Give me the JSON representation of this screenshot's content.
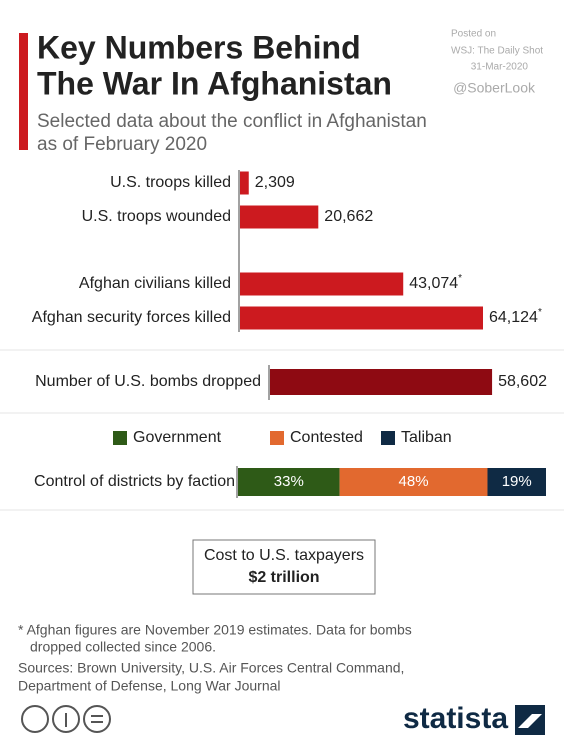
{
  "header": {
    "title": [
      "Key Numbers Behind",
      "The War In Afghanistan"
    ],
    "subtitle": [
      "Selected data about the conflict in Afghanistan",
      "as of February 2020"
    ],
    "posted": [
      "Posted on",
      "WSJ: The Daily Shot",
      "31-Mar-2020"
    ],
    "handle": "@SoberLook"
  },
  "chart_data": [
    {
      "type": "bar",
      "categories": [
        "U.S. troops killed",
        "U.S. troops wounded",
        "Afghan civilians killed",
        "Afghan security forces killed"
      ],
      "values": [
        2309,
        20662,
        43074,
        64124
      ],
      "value_labels": [
        "2,309",
        "20,662",
        "43,074*",
        "64,124*"
      ],
      "color": "#cc1a1f"
    },
    {
      "type": "bar",
      "categories": [
        "Number of U.S. bombs dropped"
      ],
      "values": [
        58602
      ],
      "value_labels": [
        "58,602"
      ],
      "color": "#8e0a12"
    },
    {
      "type": "stacked_bar",
      "categories": [
        "Control of districts by faction"
      ],
      "series": [
        {
          "name": "Government",
          "color": "#2e5a17",
          "values": [
            33
          ],
          "value_labels": [
            "33%"
          ]
        },
        {
          "name": "Contested",
          "color": "#e2692f",
          "values": [
            48
          ],
          "value_labels": [
            "48%"
          ]
        },
        {
          "name": "Taliban",
          "color": "#0f2a44",
          "values": [
            19
          ],
          "value_labels": [
            "19%"
          ]
        }
      ]
    }
  ],
  "cost": {
    "label": "Cost to U.S. taxpayers",
    "value": "$2 trillion"
  },
  "footnote": [
    "* Afghan figures are November 2019 estimates. Data for bombs",
    "dropped collected since 2006."
  ],
  "sources": [
    "Sources: Brown University, U.S. Air Forces Central Command,",
    "Department of Defense, Long War Journal"
  ],
  "brand": "statista"
}
